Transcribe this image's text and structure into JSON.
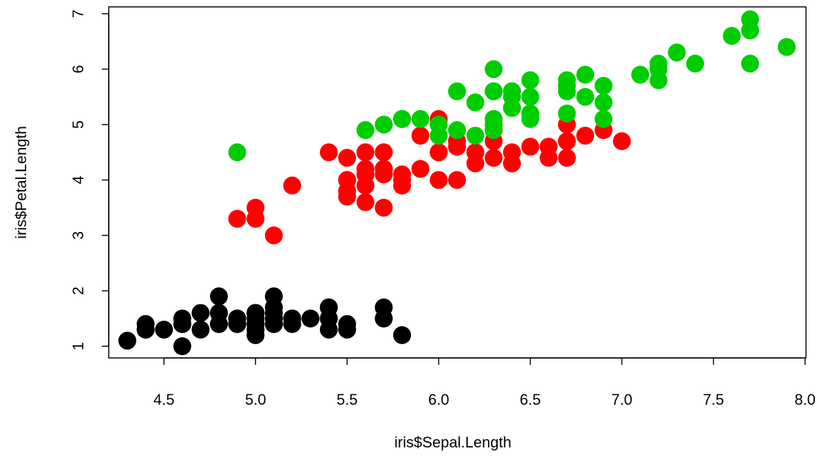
{
  "chart_data": {
    "type": "scatter",
    "title": "",
    "xlabel": "iris$Sepal.Length",
    "ylabel": "iris$Petal.Length",
    "xlim": [
      4.3,
      7.9
    ],
    "ylim": [
      1.0,
      6.9
    ],
    "x_ticks": [
      4.5,
      5.0,
      5.5,
      6.0,
      6.5,
      7.0,
      7.5,
      8.0
    ],
    "x_tick_labels": [
      "4.5",
      "5.0",
      "5.5",
      "6.0",
      "6.5",
      "7.0",
      "7.5",
      "8.0"
    ],
    "y_ticks": [
      1,
      2,
      3,
      4,
      5,
      6,
      7
    ],
    "y_tick_labels": [
      "1",
      "2",
      "3",
      "4",
      "5",
      "6",
      "7"
    ],
    "grid": false,
    "legend": "none",
    "series": [
      {
        "color": "#000000",
        "points": [
          [
            5.1,
            1.4
          ],
          [
            4.9,
            1.4
          ],
          [
            4.7,
            1.3
          ],
          [
            4.6,
            1.5
          ],
          [
            5.0,
            1.4
          ],
          [
            5.4,
            1.7
          ],
          [
            4.6,
            1.4
          ],
          [
            5.0,
            1.5
          ],
          [
            4.4,
            1.4
          ],
          [
            4.9,
            1.5
          ],
          [
            5.4,
            1.5
          ],
          [
            4.8,
            1.6
          ],
          [
            4.8,
            1.4
          ],
          [
            4.3,
            1.1
          ],
          [
            5.8,
            1.2
          ],
          [
            5.7,
            1.5
          ],
          [
            5.4,
            1.3
          ],
          [
            5.1,
            1.4
          ],
          [
            5.7,
            1.7
          ],
          [
            5.1,
            1.5
          ],
          [
            5.4,
            1.7
          ],
          [
            5.1,
            1.5
          ],
          [
            4.6,
            1.0
          ],
          [
            5.1,
            1.7
          ],
          [
            4.8,
            1.9
          ],
          [
            5.0,
            1.6
          ],
          [
            5.0,
            1.6
          ],
          [
            5.2,
            1.5
          ],
          [
            5.2,
            1.4
          ],
          [
            4.7,
            1.6
          ],
          [
            4.8,
            1.6
          ],
          [
            5.4,
            1.5
          ],
          [
            5.2,
            1.5
          ],
          [
            5.5,
            1.4
          ],
          [
            4.9,
            1.5
          ],
          [
            5.0,
            1.2
          ],
          [
            5.5,
            1.3
          ],
          [
            4.9,
            1.4
          ],
          [
            4.4,
            1.3
          ],
          [
            5.1,
            1.5
          ],
          [
            5.0,
            1.3
          ],
          [
            4.5,
            1.3
          ],
          [
            4.4,
            1.3
          ],
          [
            5.0,
            1.6
          ],
          [
            5.1,
            1.9
          ],
          [
            4.8,
            1.4
          ],
          [
            5.1,
            1.6
          ],
          [
            4.6,
            1.4
          ],
          [
            5.3,
            1.5
          ],
          [
            5.0,
            1.4
          ]
        ]
      },
      {
        "color": "#ff0000",
        "points": [
          [
            7.0,
            4.7
          ],
          [
            6.4,
            4.5
          ],
          [
            6.9,
            4.9
          ],
          [
            5.5,
            4.0
          ],
          [
            6.5,
            4.6
          ],
          [
            5.7,
            4.5
          ],
          [
            6.3,
            4.7
          ],
          [
            4.9,
            3.3
          ],
          [
            6.6,
            4.6
          ],
          [
            5.2,
            3.9
          ],
          [
            5.0,
            3.5
          ],
          [
            5.9,
            4.2
          ],
          [
            6.0,
            4.0
          ],
          [
            6.1,
            4.7
          ],
          [
            5.6,
            3.6
          ],
          [
            6.7,
            4.4
          ],
          [
            5.6,
            4.5
          ],
          [
            5.8,
            4.1
          ],
          [
            6.2,
            4.5
          ],
          [
            5.6,
            3.9
          ],
          [
            5.9,
            4.8
          ],
          [
            6.1,
            4.0
          ],
          [
            6.3,
            4.9
          ],
          [
            6.1,
            4.7
          ],
          [
            6.4,
            4.3
          ],
          [
            6.6,
            4.4
          ],
          [
            6.8,
            4.8
          ],
          [
            6.7,
            5.0
          ],
          [
            6.0,
            4.5
          ],
          [
            5.7,
            3.5
          ],
          [
            5.5,
            3.8
          ],
          [
            5.5,
            3.7
          ],
          [
            5.8,
            3.9
          ],
          [
            6.0,
            5.1
          ],
          [
            5.4,
            4.5
          ],
          [
            6.0,
            4.5
          ],
          [
            6.7,
            4.7
          ],
          [
            6.3,
            4.4
          ],
          [
            5.6,
            4.1
          ],
          [
            5.5,
            4.0
          ],
          [
            5.5,
            4.4
          ],
          [
            6.1,
            4.6
          ],
          [
            5.8,
            4.0
          ],
          [
            5.0,
            3.3
          ],
          [
            5.6,
            4.2
          ],
          [
            5.7,
            4.2
          ],
          [
            5.7,
            4.2
          ],
          [
            6.2,
            4.3
          ],
          [
            5.1,
            3.0
          ],
          [
            5.7,
            4.1
          ]
        ]
      },
      {
        "color": "#00cd00",
        "points": [
          [
            6.3,
            6.0
          ],
          [
            5.8,
            5.1
          ],
          [
            7.1,
            5.9
          ],
          [
            6.3,
            5.6
          ],
          [
            6.5,
            5.8
          ],
          [
            7.6,
            6.6
          ],
          [
            4.9,
            4.5
          ],
          [
            7.3,
            6.3
          ],
          [
            6.7,
            5.8
          ],
          [
            7.2,
            6.1
          ],
          [
            6.5,
            5.1
          ],
          [
            6.4,
            5.3
          ],
          [
            6.8,
            5.5
          ],
          [
            5.7,
            5.0
          ],
          [
            5.8,
            5.1
          ],
          [
            6.4,
            5.3
          ],
          [
            6.5,
            5.5
          ],
          [
            7.7,
            6.7
          ],
          [
            7.7,
            6.9
          ],
          [
            6.0,
            5.0
          ],
          [
            6.9,
            5.7
          ],
          [
            5.6,
            4.9
          ],
          [
            7.7,
            6.7
          ],
          [
            6.3,
            4.9
          ],
          [
            6.7,
            5.7
          ],
          [
            7.2,
            6.0
          ],
          [
            6.2,
            4.8
          ],
          [
            6.1,
            4.9
          ],
          [
            6.4,
            5.6
          ],
          [
            7.2,
            5.8
          ],
          [
            7.4,
            6.1
          ],
          [
            7.9,
            6.4
          ],
          [
            6.4,
            5.6
          ],
          [
            6.3,
            5.1
          ],
          [
            6.1,
            5.6
          ],
          [
            7.7,
            6.1
          ],
          [
            6.3,
            5.6
          ],
          [
            6.4,
            5.5
          ],
          [
            6.0,
            4.8
          ],
          [
            6.9,
            5.4
          ],
          [
            6.7,
            5.6
          ],
          [
            6.9,
            5.1
          ],
          [
            5.8,
            5.1
          ],
          [
            6.8,
            5.9
          ],
          [
            6.7,
            5.7
          ],
          [
            6.7,
            5.2
          ],
          [
            6.3,
            5.0
          ],
          [
            6.5,
            5.2
          ],
          [
            6.2,
            5.4
          ],
          [
            5.9,
            5.1
          ]
        ]
      }
    ]
  }
}
